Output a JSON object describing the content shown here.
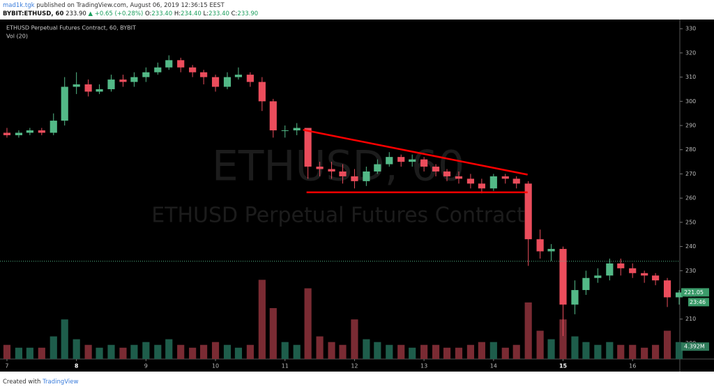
{
  "header": {
    "author": "mad1k.tgk",
    "published": " published on TradingView.com, August 06, 2019 12:36:15 EEST",
    "symbol": "BYBIT:ETHUSD, 60",
    "price": "233.90",
    "change": "▲ +0.65 (+0.28%)",
    "ohlc": [
      {
        "label": "O:",
        "value": "233.40"
      },
      {
        "label": "H:",
        "value": "234.40"
      },
      {
        "label": "L:",
        "value": "233.40"
      },
      {
        "label": "C:",
        "value": "233.90"
      }
    ]
  },
  "footer": {
    "text": "Created with",
    "brand": "TradingView"
  },
  "chart_data": {
    "type": "candlestick",
    "legend": [
      "ETHUSD Perpetual Futures Contract, 60, BYBIT",
      "Vol (20)"
    ],
    "watermark": [
      "ETHUSD, 60",
      "ETHUSD Perpetual Futures Contract"
    ],
    "x": [
      7.0,
      7.17,
      7.33,
      7.5,
      7.67,
      7.83,
      8.0,
      8.17,
      8.33,
      8.5,
      8.67,
      8.83,
      9.0,
      9.17,
      9.33,
      9.5,
      9.67,
      9.83,
      10.0,
      10.17,
      10.33,
      10.5,
      10.67,
      10.83,
      11.0,
      11.17,
      11.33,
      11.5,
      11.67,
      11.83,
      12.0,
      12.17,
      12.33,
      12.5,
      12.67,
      12.83,
      13.0,
      13.17,
      13.33,
      13.5,
      13.67,
      13.83,
      14.0,
      14.17,
      14.33,
      14.5,
      14.67,
      14.83,
      15.0,
      15.17,
      15.33,
      15.5,
      15.67,
      15.83,
      16.0,
      16.17,
      16.33,
      16.5,
      16.67
    ],
    "open": [
      287,
      286,
      287,
      288,
      287,
      292,
      306,
      307,
      304,
      305,
      309,
      308,
      310,
      312,
      314,
      317,
      314,
      312,
      310,
      306,
      310,
      311,
      308,
      300,
      288,
      288,
      289,
      273,
      272,
      271,
      269,
      267,
      271,
      274,
      277,
      275,
      276,
      273,
      271,
      269,
      268,
      266,
      264,
      269,
      268,
      266,
      243,
      238,
      239,
      216,
      222,
      227,
      228,
      233,
      231,
      229,
      228,
      226,
      219
    ],
    "high": [
      289,
      288,
      289,
      289,
      295,
      310,
      312,
      309,
      307,
      311,
      311,
      312,
      314,
      316,
      319,
      318,
      315,
      313,
      311,
      312,
      314,
      312,
      310,
      301,
      290,
      291,
      289,
      275,
      275,
      274,
      272,
      273,
      276,
      279,
      278,
      278,
      277,
      274,
      272,
      271,
      270,
      268,
      270,
      270,
      269,
      267,
      247,
      241,
      240,
      226,
      230,
      231,
      235,
      235,
      233,
      230,
      229,
      227,
      222
    ],
    "low": [
      285,
      285,
      286,
      286,
      286,
      290,
      303,
      302,
      303,
      304,
      306,
      306,
      308,
      311,
      313,
      312,
      310,
      307,
      304,
      305,
      309,
      306,
      296,
      285,
      285,
      286,
      268,
      269,
      268,
      266,
      264,
      265,
      270,
      273,
      273,
      273,
      271,
      269,
      267,
      266,
      264,
      262,
      263,
      266,
      264,
      232,
      235,
      234,
      203,
      212,
      220,
      225,
      226,
      228,
      227,
      225,
      224,
      215,
      216
    ],
    "close": [
      286,
      287,
      288,
      287,
      292,
      306,
      307,
      304,
      305,
      309,
      308,
      310,
      312,
      314,
      317,
      314,
      312,
      310,
      306,
      310,
      311,
      308,
      300,
      288,
      288,
      289,
      273,
      272,
      271,
      269,
      267,
      271,
      274,
      277,
      275,
      276,
      273,
      271,
      269,
      268,
      266,
      264,
      269,
      268,
      266,
      243,
      238,
      239,
      216,
      222,
      227,
      228,
      233,
      231,
      229,
      228,
      226,
      219,
      221
    ],
    "volume": [
      5,
      4,
      4,
      4,
      8,
      14,
      7,
      5,
      4,
      5,
      4,
      5,
      6,
      5,
      7,
      5,
      4,
      5,
      6,
      5,
      4,
      5,
      28,
      18,
      6,
      5,
      25,
      8,
      6,
      5,
      14,
      7,
      6,
      5,
      5,
      4,
      5,
      5,
      4,
      4,
      5,
      6,
      6,
      4,
      5,
      20,
      10,
      7,
      14,
      8,
      6,
      5,
      6,
      5,
      5,
      4,
      5,
      10,
      6
    ],
    "up_color": "#53b987",
    "down_color": "#eb4d5c",
    "up_volume_color": "#1e5d4b",
    "down_volume_color": "#7a2b33",
    "xlim": [
      6.9,
      16.68
    ],
    "ylim": [
      193.5,
      333.8
    ],
    "volume_lim": [
      0,
      120
    ],
    "xticks": [
      7,
      8,
      9,
      10,
      11,
      12,
      13,
      14,
      15,
      16
    ],
    "bold_xticks": [
      8,
      15
    ],
    "yticks": [
      200,
      210,
      220,
      230,
      240,
      250,
      260,
      270,
      280,
      290,
      300,
      310,
      320,
      330
    ],
    "price_line": 233.9,
    "price_tags": [
      {
        "value": 221.05,
        "label": "221.05"
      }
    ],
    "countdown": "23:46",
    "volume_tag": {
      "value": 4.392,
      "label": "4.392M"
    },
    "drawings": [
      {
        "x": [
          11.26,
          14.49
        ],
        "y": [
          288.2,
          269.7
        ],
        "color": "#ff0000"
      },
      {
        "x": [
          11.31,
          14.49
        ],
        "y": [
          262.4,
          262.4
        ],
        "color": "#ff0000"
      }
    ]
  }
}
